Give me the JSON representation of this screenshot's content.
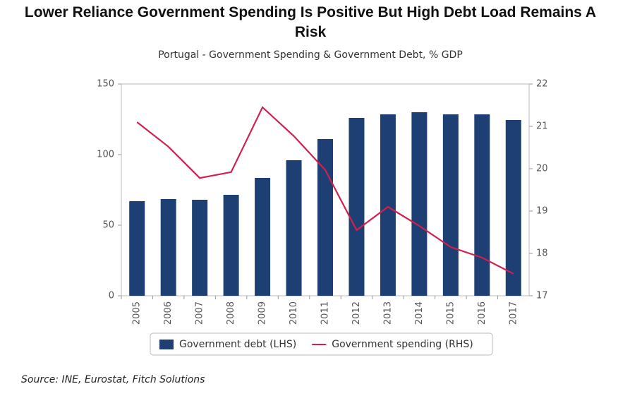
{
  "chart_data": {
    "type": "bar-line",
    "title": "Lower Reliance Government Spending Is Positive But High Debt Load Remains A Risk",
    "subtitle": "Portugal - Government Spending & Government Debt, % GDP",
    "categories": [
      "2005",
      "2006",
      "2007",
      "2008",
      "2009",
      "2010",
      "2011",
      "2012",
      "2013",
      "2014",
      "2015",
      "2016",
      "2017"
    ],
    "series": [
      {
        "name": "Government debt (LHS)",
        "type": "bar",
        "color": "#1d3f73",
        "values": [
          67,
          68.5,
          68,
          71.5,
          83.5,
          96,
          111,
          126,
          128.5,
          130,
          128.5,
          128.5,
          124.5
        ]
      },
      {
        "name": "Government spending (RHS)",
        "type": "line",
        "axis": "y2",
        "color": "#d0204e",
        "values": [
          21.1,
          20.52,
          19.78,
          19.92,
          21.45,
          20.77,
          19.97,
          18.55,
          19.1,
          18.65,
          18.15,
          17.9,
          17.52
        ]
      }
    ],
    "ylim": [
      0,
      150
    ],
    "yticks": [
      0,
      50,
      100,
      150
    ],
    "y2lim": [
      17,
      22
    ],
    "y2ticks": [
      17,
      18,
      19,
      20,
      21,
      22
    ],
    "source": "Source: INE, Eurostat, Fitch Solutions"
  }
}
